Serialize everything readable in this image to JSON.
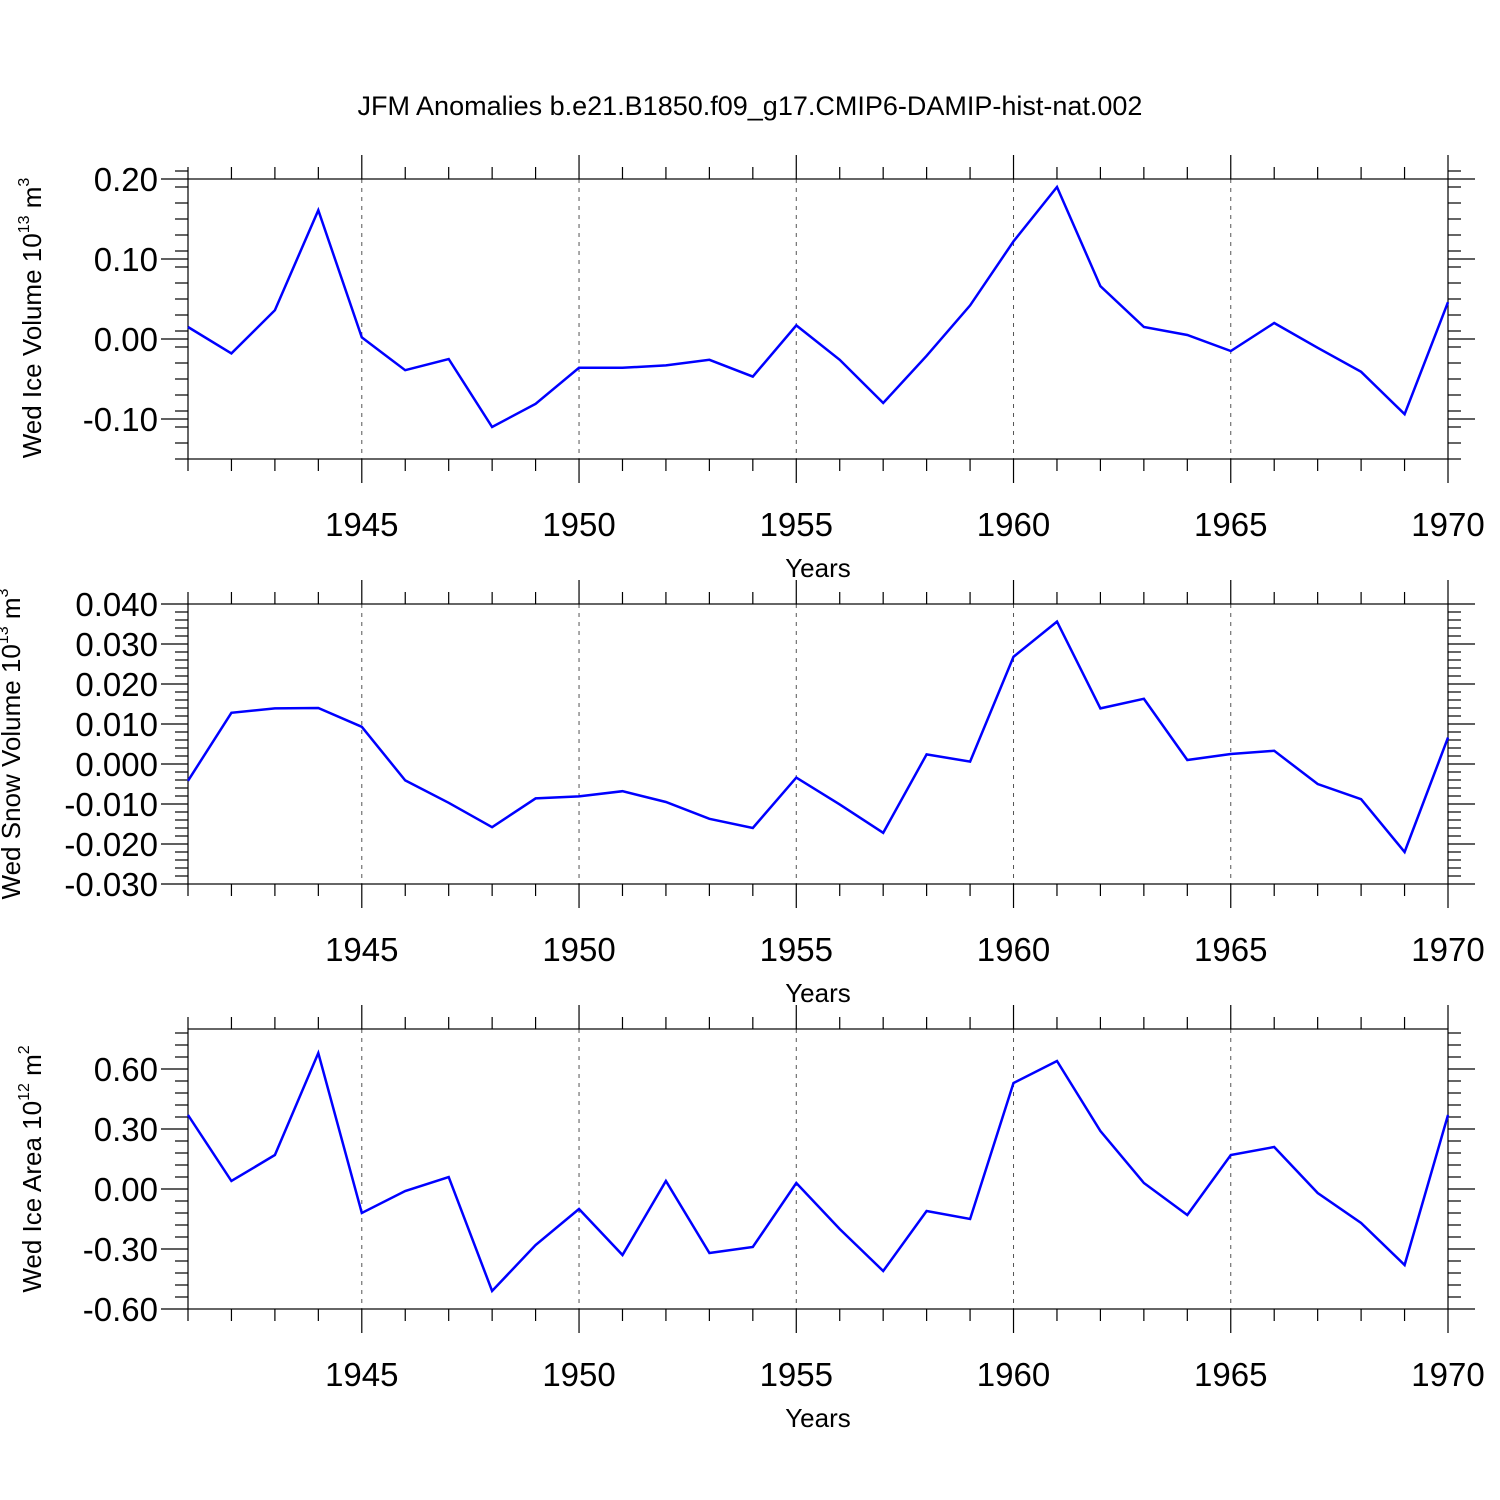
{
  "title": "JFM Anomalies b.e21.B1850.f09_g17.CMIP6-DAMIP-hist-nat.002",
  "line_color": "#0000ff",
  "chart_data": [
    {
      "type": "line",
      "ylabel": "Wed Ice Volume 10",
      "ylabel_exp": "13",
      "ylabel_unit": " m",
      "ylabel_unit_exp": "3",
      "xlabel": "Years",
      "xlim": [
        1941,
        1970
      ],
      "ylim": [
        -0.15,
        0.2
      ],
      "yticks": [
        -0.1,
        0.0,
        0.1,
        0.2
      ],
      "ytick_labels": [
        "-0.10",
        "0.00",
        "0.10",
        "0.20"
      ],
      "yminor_step": 0.02,
      "xticks": [
        1945,
        1950,
        1955,
        1960,
        1965,
        1970
      ],
      "xtick_labels": [
        "1945",
        "1950",
        "1955",
        "1960",
        "1965",
        "1970"
      ],
      "grid_x": [
        1945,
        1950,
        1955,
        1960,
        1965
      ],
      "x": [
        1941,
        1942,
        1943,
        1944,
        1945,
        1946,
        1947,
        1948,
        1949,
        1950,
        1951,
        1952,
        1953,
        1954,
        1955,
        1956,
        1957,
        1958,
        1959,
        1960,
        1961,
        1962,
        1963,
        1964,
        1965,
        1966,
        1967,
        1968,
        1969,
        1970
      ],
      "values": [
        0.015,
        -0.018,
        0.036,
        0.161,
        0.002,
        -0.039,
        -0.025,
        -0.11,
        -0.081,
        -0.036,
        -0.036,
        -0.033,
        -0.026,
        -0.047,
        0.017,
        -0.026,
        -0.08,
        -0.021,
        0.042,
        0.122,
        0.19,
        0.066,
        0.015,
        0.005,
        -0.015,
        0.02,
        -0.011,
        -0.041,
        -0.094,
        0.046
      ]
    },
    {
      "type": "line",
      "ylabel": "Wed Snow Volume 10",
      "ylabel_exp": "13",
      "ylabel_unit": " m",
      "ylabel_unit_exp": "3",
      "xlabel": "Years",
      "xlim": [
        1941,
        1970
      ],
      "ylim": [
        -0.03,
        0.04
      ],
      "yticks": [
        -0.03,
        -0.02,
        -0.01,
        0.0,
        0.01,
        0.02,
        0.03,
        0.04
      ],
      "ytick_labels": [
        "-0.030",
        "-0.020",
        "-0.010",
        "0.000",
        "0.010",
        "0.020",
        "0.030",
        "0.040"
      ],
      "yminor_step": 0.002,
      "xticks": [
        1945,
        1950,
        1955,
        1960,
        1965,
        1970
      ],
      "xtick_labels": [
        "1945",
        "1950",
        "1955",
        "1960",
        "1965",
        "1970"
      ],
      "grid_x": [
        1945,
        1950,
        1955,
        1960,
        1965
      ],
      "x": [
        1941,
        1942,
        1943,
        1944,
        1945,
        1946,
        1947,
        1948,
        1949,
        1950,
        1951,
        1952,
        1953,
        1954,
        1955,
        1956,
        1957,
        1958,
        1959,
        1960,
        1961,
        1962,
        1963,
        1964,
        1965,
        1966,
        1967,
        1968,
        1969,
        1970
      ],
      "values": [
        -0.0042,
        0.0128,
        0.0139,
        0.014,
        0.0093,
        -0.0041,
        -0.0097,
        -0.0158,
        -0.0086,
        -0.0081,
        -0.0068,
        -0.0095,
        -0.0137,
        -0.016,
        -0.0034,
        -0.0101,
        -0.0172,
        0.0024,
        0.0006,
        0.0268,
        0.0356,
        0.0139,
        0.0163,
        0.001,
        0.0025,
        0.0033,
        -0.005,
        -0.0088,
        -0.022,
        0.0066
      ]
    },
    {
      "type": "line",
      "ylabel": "Wed Ice Area 10",
      "ylabel_exp": "12",
      "ylabel_unit": " m",
      "ylabel_unit_exp": "2",
      "xlabel": "Years",
      "xlim": [
        1941,
        1970
      ],
      "ylim": [
        -0.6,
        0.8
      ],
      "yticks": [
        -0.6,
        -0.3,
        0.0,
        0.3,
        0.6
      ],
      "ytick_labels": [
        "-0.60",
        "-0.30",
        "0.00",
        "0.30",
        "0.60"
      ],
      "yminor_step": 0.06,
      "xticks": [
        1945,
        1950,
        1955,
        1960,
        1965,
        1970
      ],
      "xtick_labels": [
        "1945",
        "1950",
        "1955",
        "1960",
        "1965",
        "1970"
      ],
      "grid_x": [
        1945,
        1950,
        1955,
        1960,
        1965
      ],
      "x": [
        1941,
        1942,
        1943,
        1944,
        1945,
        1946,
        1947,
        1948,
        1949,
        1950,
        1951,
        1952,
        1953,
        1954,
        1955,
        1956,
        1957,
        1958,
        1959,
        1960,
        1961,
        1962,
        1963,
        1964,
        1965,
        1966,
        1967,
        1968,
        1969,
        1970
      ],
      "values": [
        0.37,
        0.04,
        0.17,
        0.68,
        -0.12,
        -0.01,
        0.06,
        -0.51,
        -0.28,
        -0.1,
        -0.33,
        0.04,
        -0.32,
        -0.29,
        0.03,
        -0.2,
        -0.41,
        -0.11,
        -0.15,
        0.53,
        0.64,
        0.29,
        0.03,
        -0.13,
        0.17,
        0.21,
        -0.02,
        -0.17,
        -0.38,
        0.37
      ]
    }
  ]
}
